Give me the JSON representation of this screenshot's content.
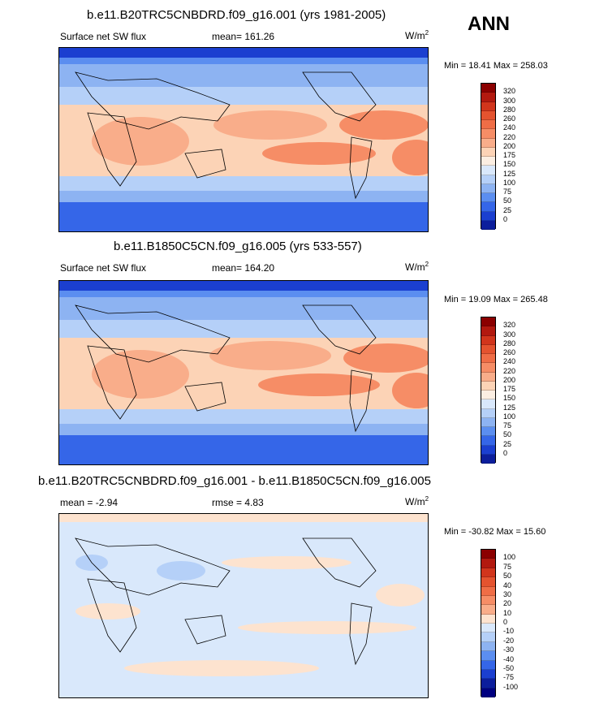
{
  "season": "ANN",
  "panels": [
    {
      "title": "b.e11.B20TRC5CNBDRD.f09_g16.001 (yrs 1981-2005)",
      "left_label": "Surface net SW flux",
      "center_label": "mean= 161.26",
      "units_base": "W/m",
      "units_exp": "2",
      "minmax": "Min =  18.41 Max = 258.03",
      "levels": [
        "320",
        "300",
        "280",
        "260",
        "240",
        "220",
        "200",
        "175",
        "150",
        "125",
        "100",
        "75",
        "50",
        "25",
        "0"
      ]
    },
    {
      "title": "b.e11.B1850C5CN.f09_g16.005 (yrs 533-557)",
      "left_label": "Surface net SW flux",
      "center_label": "mean= 164.20",
      "units_base": "W/m",
      "units_exp": "2",
      "minmax": "Min =  19.09 Max = 265.48",
      "levels": [
        "320",
        "300",
        "280",
        "260",
        "240",
        "220",
        "200",
        "175",
        "150",
        "125",
        "100",
        "75",
        "50",
        "25",
        "0"
      ]
    },
    {
      "title": "b.e11.B20TRC5CNBDRD.f09_g16.001 - b.e11.B1850C5CN.f09_g16.005",
      "left_label": "mean =  -2.94",
      "center_label": "rmse =   4.83",
      "units_base": "W/m",
      "units_exp": "2",
      "minmax": "Min = -30.82 Max =  15.60",
      "levels": [
        "100",
        "75",
        "50",
        "40",
        "30",
        "20",
        "10",
        "0",
        "-10",
        "-20",
        "-30",
        "-40",
        "-50",
        "-75",
        "-100"
      ]
    }
  ],
  "colors": {
    "abs_scale": [
      "#8b0000",
      "#b2190f",
      "#d1351c",
      "#e4532f",
      "#ef6d46",
      "#f68d66",
      "#f9ad8a",
      "#fcd3b6",
      "#fbeee2",
      "#d9e8fb",
      "#b5d0f8",
      "#8db3f2",
      "#5b8ef0",
      "#3566e8",
      "#1b3fd0",
      "#0c1e9c"
    ],
    "diff_scale": [
      "#8b0000",
      "#b2190f",
      "#d1351c",
      "#e4532f",
      "#ef6d46",
      "#f68d66",
      "#f9ad8a",
      "#fde3cf",
      "#d9e8fb",
      "#b5d0f8",
      "#8db3f2",
      "#5b8ef0",
      "#3566e8",
      "#1b3fd0",
      "#0c1e9c",
      "#000080"
    ]
  }
}
